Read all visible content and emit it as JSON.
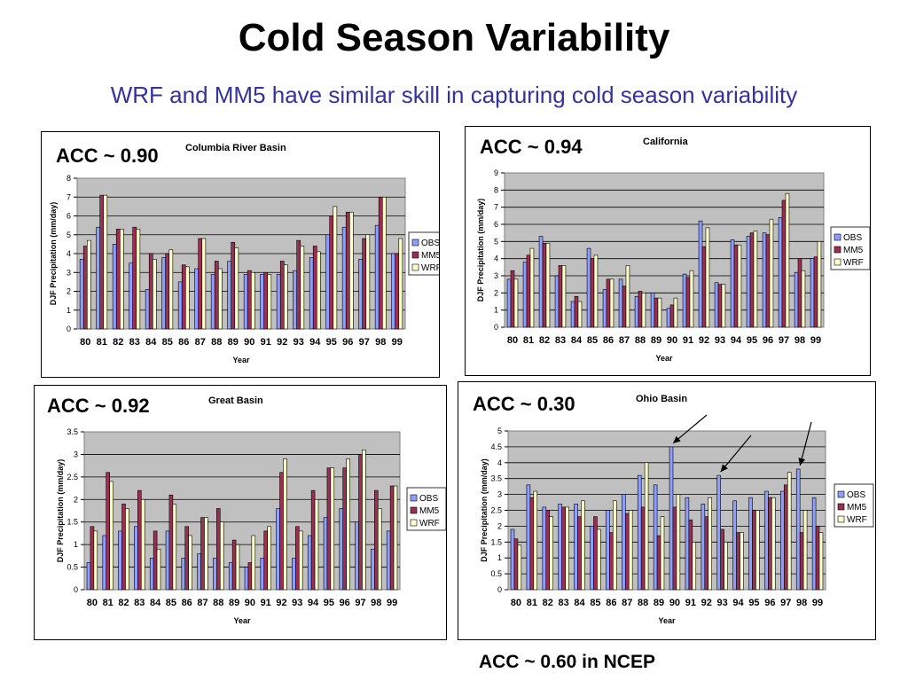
{
  "page": {
    "title": "Cold Season Variability",
    "subtitle": "WRF and MM5 have similar skill in capturing cold season variability",
    "footer": "ACC ~ 0.60 in NCEP"
  },
  "colors": {
    "OBS": "#8c9eff",
    "MM5": "#9b2f52",
    "WRF": "#ffffcc"
  },
  "chart_data": [
    {
      "type": "bar",
      "title": "Columbia River Basin",
      "acc": "ACC ~ 0.90",
      "xlabel": "Year",
      "ylabel": "DJF Precipitation (mm/day)",
      "ylim": [
        0,
        8
      ],
      "yticks": [
        "0",
        "1",
        "2",
        "3",
        "4",
        "5",
        "6",
        "7",
        "8"
      ],
      "categories": [
        "80",
        "81",
        "82",
        "83",
        "84",
        "85",
        "86",
        "87",
        "88",
        "89",
        "90",
        "91",
        "92",
        "93",
        "94",
        "95",
        "96",
        "97",
        "98",
        "99"
      ],
      "legend": "right",
      "series": [
        {
          "name": "OBS",
          "values": [
            3.7,
            5.4,
            4.5,
            3.5,
            2.1,
            3.8,
            2.5,
            3.2,
            2.9,
            3.6,
            2.9,
            2.9,
            2.9,
            3.1,
            3.8,
            5.0,
            5.4,
            3.7,
            5.5,
            4.0
          ]
        },
        {
          "name": "MM5",
          "values": [
            4.4,
            7.1,
            5.3,
            5.4,
            4.0,
            4.0,
            3.4,
            4.8,
            3.6,
            4.6,
            3.1,
            3.0,
            3.6,
            4.7,
            4.4,
            6.0,
            6.2,
            4.8,
            7.0,
            4.0
          ]
        },
        {
          "name": "WRF",
          "values": [
            4.7,
            7.1,
            5.3,
            5.3,
            3.7,
            4.2,
            3.3,
            4.8,
            3.2,
            4.3,
            3.0,
            2.9,
            3.4,
            4.4,
            4.1,
            6.5,
            6.2,
            5.0,
            7.0,
            4.8
          ]
        }
      ]
    },
    {
      "type": "bar",
      "title": "California",
      "acc": "ACC ~ 0.94",
      "xlabel": "Year",
      "ylabel": "DJF Precipitation (mm/day)",
      "ylim": [
        0,
        9
      ],
      "yticks": [
        "0",
        "1",
        "2",
        "3",
        "4",
        "5",
        "6",
        "7",
        "8",
        "9"
      ],
      "categories": [
        "80",
        "81",
        "82",
        "83",
        "84",
        "85",
        "86",
        "87",
        "88",
        "89",
        "90",
        "91",
        "92",
        "93",
        "94",
        "95",
        "96",
        "97",
        "98",
        "99"
      ],
      "legend": "right",
      "series": [
        {
          "name": "OBS",
          "values": [
            2.8,
            3.8,
            5.3,
            3.0,
            1.5,
            4.6,
            2.2,
            2.8,
            1.8,
            2.0,
            1.1,
            3.1,
            6.2,
            2.6,
            5.1,
            5.3,
            5.5,
            6.4,
            3.2,
            4.0
          ]
        },
        {
          "name": "MM5",
          "values": [
            3.3,
            4.2,
            4.9,
            3.6,
            1.8,
            4.0,
            2.8,
            2.4,
            2.1,
            1.7,
            1.3,
            2.9,
            4.7,
            2.5,
            4.8,
            5.5,
            5.4,
            7.4,
            4.0,
            4.1
          ]
        },
        {
          "name": "WRF",
          "values": [
            2.8,
            4.6,
            4.9,
            3.6,
            1.5,
            4.2,
            2.8,
            3.6,
            2.0,
            1.7,
            1.7,
            3.3,
            5.8,
            2.5,
            4.8,
            5.6,
            6.3,
            7.8,
            3.3,
            5.0
          ]
        }
      ]
    },
    {
      "type": "bar",
      "title": "Great Basin",
      "acc": "ACC ~ 0.92",
      "xlabel": "Year",
      "ylabel": "DJF Precipitation (mm/day)",
      "ylim": [
        0,
        3.5
      ],
      "yticks": [
        "0",
        "0.5",
        "1",
        "1.5",
        "2",
        "2.5",
        "3",
        "3.5"
      ],
      "categories": [
        "80",
        "81",
        "82",
        "83",
        "84",
        "85",
        "86",
        "87",
        "88",
        "89",
        "90",
        "91",
        "92",
        "93",
        "94",
        "95",
        "96",
        "97",
        "98",
        "99"
      ],
      "legend": "right",
      "series": [
        {
          "name": "OBS",
          "values": [
            0.6,
            1.2,
            1.3,
            1.4,
            0.7,
            1.3,
            0.7,
            0.8,
            0.7,
            0.6,
            0.5,
            0.7,
            1.8,
            0.7,
            1.2,
            1.6,
            1.8,
            1.5,
            0.9,
            1.3
          ]
        },
        {
          "name": "MM5",
          "values": [
            1.4,
            2.6,
            1.9,
            2.2,
            1.3,
            2.1,
            1.4,
            1.6,
            1.8,
            1.1,
            0.6,
            1.3,
            2.6,
            1.4,
            2.2,
            2.7,
            2.7,
            3.0,
            2.2,
            2.3
          ]
        },
        {
          "name": "WRF",
          "values": [
            1.3,
            2.4,
            1.8,
            2.0,
            0.9,
            1.9,
            1.2,
            1.6,
            1.5,
            1.0,
            1.2,
            1.4,
            2.9,
            1.3,
            2.0,
            2.7,
            2.9,
            3.1,
            1.8,
            2.3
          ]
        }
      ]
    },
    {
      "type": "bar",
      "title": "Ohio Basin",
      "acc": "ACC ~ 0.30",
      "xlabel": "Year",
      "ylabel": "DJF Precipitation (mm/day)",
      "ylim": [
        0,
        5
      ],
      "yticks": [
        "0",
        "0.5",
        "1",
        "1.5",
        "2",
        "2.5",
        "3",
        "3.5",
        "4",
        "4.5",
        "5"
      ],
      "categories": [
        "80",
        "81",
        "82",
        "83",
        "84",
        "85",
        "86",
        "87",
        "88",
        "89",
        "90",
        "91",
        "92",
        "93",
        "94",
        "95",
        "96",
        "97",
        "98",
        "99"
      ],
      "legend": "right",
      "annotations": "arrows pointing at the OBS bars for years 90, 93 and 98",
      "series": [
        {
          "name": "OBS",
          "values": [
            1.9,
            3.3,
            2.6,
            2.7,
            2.7,
            2.0,
            2.5,
            3.0,
            3.6,
            3.3,
            4.5,
            2.9,
            2.7,
            3.6,
            2.8,
            2.9,
            3.1,
            3.1,
            3.8,
            2.9
          ]
        },
        {
          "name": "MM5",
          "values": [
            1.6,
            2.9,
            2.5,
            2.6,
            2.3,
            2.3,
            1.8,
            2.4,
            2.6,
            1.7,
            2.6,
            2.2,
            2.3,
            1.9,
            1.8,
            2.5,
            2.9,
            3.3,
            1.8,
            2.0
          ]
        },
        {
          "name": "WRF",
          "values": [
            1.4,
            3.1,
            2.3,
            2.6,
            2.8,
            1.9,
            2.8,
            2.5,
            4.0,
            2.3,
            3.0,
            1.5,
            2.9,
            1.5,
            1.8,
            2.5,
            2.9,
            3.7,
            2.5,
            1.8
          ]
        }
      ]
    }
  ]
}
